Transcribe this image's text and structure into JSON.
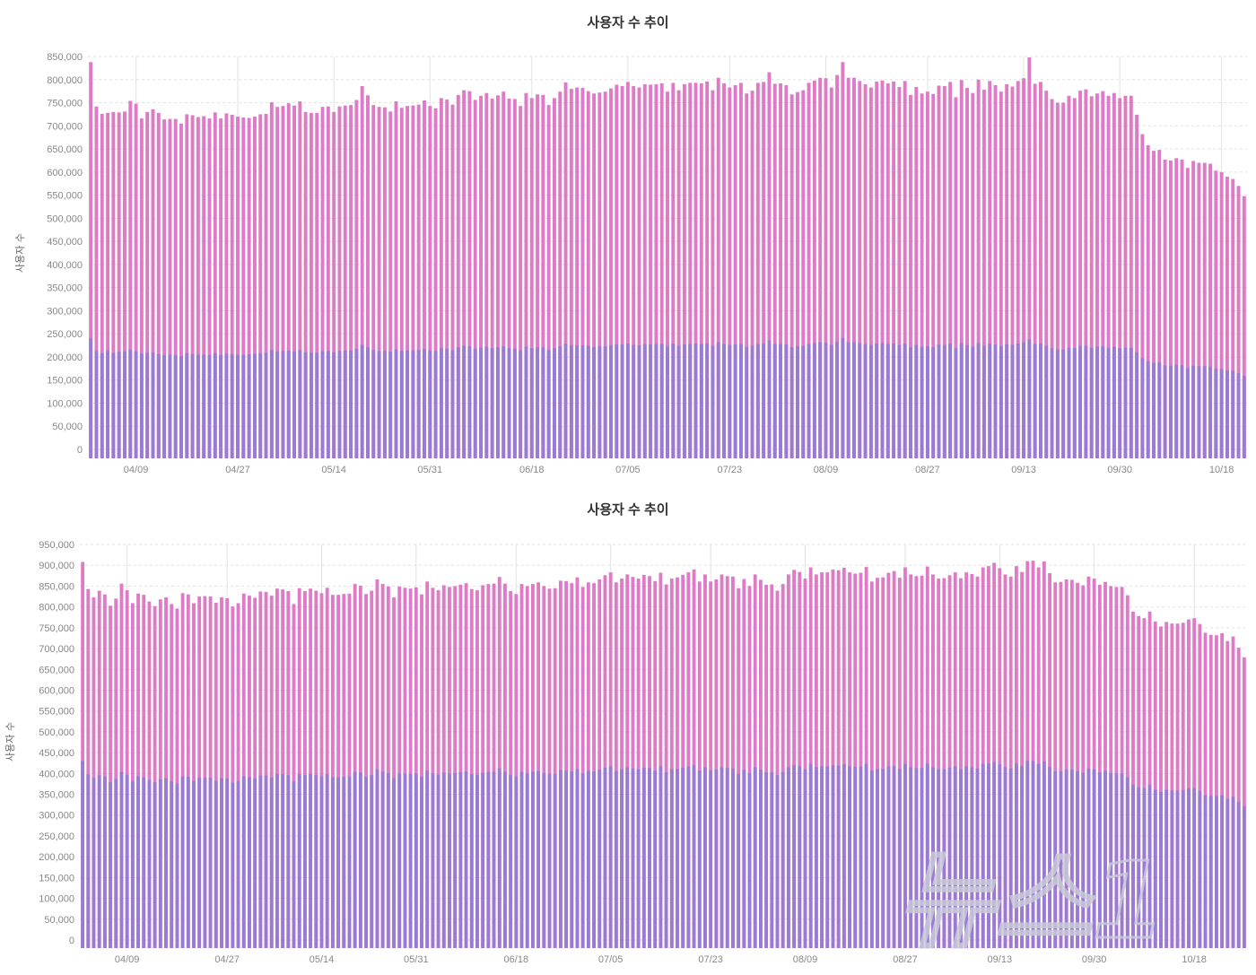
{
  "colors": {
    "total": "#de7ac6",
    "sub": "#9a7ad4",
    "grid": "#e2e2e2",
    "axis_text": "#888888",
    "title": "#333333",
    "watermark": "#bfbfd0"
  },
  "watermark": {
    "text": "뉴스1"
  },
  "chart_data": [
    {
      "type": "bar",
      "title": "사용자 수 추이",
      "ylabel": "사용자 수",
      "ylim": [
        0,
        850000
      ],
      "yticks": [
        0,
        50000,
        100000,
        150000,
        200000,
        250000,
        300000,
        350000,
        400000,
        450000,
        500000,
        550000,
        600000,
        650000,
        700000,
        750000,
        800000,
        850000
      ],
      "ytick_labels": [
        "0",
        "50,000",
        "100,000",
        "150,000",
        "200,000",
        "250,000",
        "300,000",
        "350,000",
        "400,000",
        "450,000",
        "500,000",
        "550,000",
        "600,000",
        "650,000",
        "700,000",
        "750,000",
        "800,000",
        "850,000"
      ],
      "xtick_labels": [
        "04/09",
        "04/27",
        "05/14",
        "05/31",
        "06/18",
        "07/05",
        "07/23",
        "08/09",
        "08/27",
        "09/13",
        "09/30",
        "10/18"
      ],
      "xtick_index": [
        8,
        26,
        43,
        60,
        78,
        95,
        113,
        130,
        148,
        165,
        182,
        200
      ],
      "grid": "horizontal dashed + vertical at ticks",
      "series": [
        {
          "values": [
            838000,
            742000,
            726000,
            728000,
            730000,
            729000,
            731000,
            754000,
            748000,
            716000,
            730000,
            736000,
            728000,
            714000,
            715000,
            715000,
            705000,
            725000,
            723000,
            719000,
            721000,
            716000,
            729000,
            716000,
            727000,
            724000,
            720000,
            718000,
            717000,
            720000,
            725000,
            726000,
            751000,
            741000,
            743000,
            749000,
            744000,
            753000,
            730000,
            728000,
            728000,
            741000,
            742000,
            730000,
            742000,
            744000,
            745000,
            756000,
            786000,
            766000,
            745000,
            741000,
            740000,
            731000,
            753000,
            739000,
            743000,
            744000,
            746000,
            755000,
            743000,
            738000,
            760000,
            757000,
            746000,
            767000,
            777000,
            775000,
            756000,
            765000,
            771000,
            759000,
            766000,
            774000,
            759000,
            758000,
            743000,
            771000,
            760000,
            768000,
            767000,
            745000,
            760000,
            774000,
            794000,
            780000,
            783000,
            782000,
            775000,
            770000,
            772000,
            774000,
            781000,
            789000,
            786000,
            795000,
            786000,
            783000,
            790000,
            789000,
            790000,
            792000,
            774000,
            793000,
            777000,
            790000,
            793000,
            793000,
            792000,
            796000,
            777000,
            804000,
            792000,
            783000,
            788000,
            793000,
            770000,
            776000,
            793000,
            795000,
            816000,
            791000,
            792000,
            788000,
            768000,
            773000,
            777000,
            793000,
            798000,
            804000,
            803000,
            783000,
            810000,
            838000,
            804000,
            804000,
            797000,
            790000,
            783000,
            796000,
            798000,
            792000,
            796000,
            784000,
            797000,
            767000,
            784000,
            770000,
            774000,
            769000,
            787000,
            786000,
            795000,
            762000,
            799000,
            782000,
            771000,
            800000,
            778000,
            797000,
            788000,
            774000,
            790000,
            785000,
            797000,
            803000,
            848000,
            791000,
            795000,
            776000,
            758000,
            750000,
            750000,
            765000,
            760000,
            776000,
            779000,
            764000,
            770000,
            775000,
            765000,
            771000,
            760000,
            765000,
            765000,
            724000,
            682000,
            658000,
            646000,
            648000,
            627000,
            625000,
            630000,
            627000,
            609000,
            624000,
            620000,
            620000,
            618000,
            603000,
            600000,
            590000,
            585000,
            570000,
            548000
          ]
        },
        {
          "values": [
            240000,
            213000,
            208000,
            214000,
            209000,
            211000,
            212000,
            216000,
            212000,
            207000,
            209000,
            210000,
            206000,
            204000,
            205000,
            204000,
            202000,
            208000,
            206000,
            205000,
            205000,
            204000,
            208000,
            204000,
            207000,
            206000,
            205000,
            205000,
            206000,
            207000,
            208000,
            209000,
            215000,
            212000,
            213000,
            214000,
            212000,
            215000,
            210000,
            209000,
            209000,
            213000,
            213000,
            210000,
            213000,
            214000,
            214000,
            218000,
            226000,
            221000,
            215000,
            213000,
            213000,
            211000,
            216000,
            213000,
            214000,
            214000,
            215000,
            217000,
            214000,
            213000,
            219000,
            218000,
            215000,
            221000,
            224000,
            223000,
            218000,
            220000,
            222000,
            219000,
            221000,
            223000,
            219000,
            218000,
            214000,
            222000,
            219000,
            221000,
            221000,
            215000,
            219000,
            223000,
            229000,
            225000,
            225000,
            225000,
            224000,
            222000,
            223000,
            223000,
            225000,
            227000,
            227000,
            229000,
            226000,
            225000,
            228000,
            227000,
            228000,
            228000,
            223000,
            229000,
            224000,
            227000,
            228000,
            229000,
            228000,
            229000,
            224000,
            232000,
            228000,
            226000,
            227000,
            228000,
            222000,
            224000,
            228000,
            229000,
            235000,
            228000,
            228000,
            227000,
            221000,
            223000,
            224000,
            228000,
            230000,
            232000,
            231000,
            226000,
            233000,
            241000,
            232000,
            232000,
            230000,
            228000,
            226000,
            229000,
            230000,
            228000,
            229000,
            226000,
            229000,
            221000,
            226000,
            222000,
            223000,
            221000,
            227000,
            226000,
            229000,
            219000,
            230000,
            225000,
            222000,
            230000,
            224000,
            229000,
            227000,
            223000,
            227000,
            226000,
            229000,
            231000,
            238000,
            228000,
            229000,
            224000,
            219000,
            216000,
            216000,
            220000,
            219000,
            224000,
            224000,
            220000,
            222000,
            223000,
            220000,
            222000,
            219000,
            220000,
            220000,
            210000,
            198000,
            191000,
            187000,
            188000,
            182000,
            181000,
            183000,
            182000,
            176000,
            181000,
            180000,
            180000,
            179000,
            175000,
            174000,
            171000,
            170000,
            165000,
            159000
          ]
        }
      ]
    },
    {
      "type": "bar",
      "title": "사용자 수 추이",
      "ylabel": "사용자 수",
      "ylim": [
        0,
        950000
      ],
      "yticks": [
        0,
        50000,
        100000,
        150000,
        200000,
        250000,
        300000,
        350000,
        400000,
        450000,
        500000,
        550000,
        600000,
        650000,
        700000,
        750000,
        800000,
        850000,
        900000,
        950000
      ],
      "ytick_labels": [
        "0",
        "50,000",
        "100,000",
        "150,000",
        "200,000",
        "250,000",
        "300,000",
        "350,000",
        "400,000",
        "450,000",
        "500,000",
        "550,000",
        "600,000",
        "650,000",
        "700,000",
        "750,000",
        "800,000",
        "850,000",
        "900,000",
        "950,000"
      ],
      "xtick_labels": [
        "04/09",
        "04/27",
        "05/14",
        "05/31",
        "06/18",
        "07/05",
        "07/23",
        "08/09",
        "08/27",
        "09/13",
        "09/30",
        "10/18"
      ],
      "xtick_index": [
        8,
        26,
        43,
        60,
        78,
        95,
        113,
        130,
        148,
        165,
        182,
        200
      ],
      "grid": "horizontal dashed + vertical at ticks",
      "series": [
        {
          "values": [
            908000,
            843000,
            823000,
            839000,
            830000,
            803000,
            820000,
            856000,
            840000,
            809000,
            832000,
            829000,
            813000,
            802000,
            818000,
            823000,
            807000,
            796000,
            833000,
            830000,
            809000,
            825000,
            826000,
            825000,
            810000,
            823000,
            821000,
            801000,
            809000,
            832000,
            827000,
            822000,
            837000,
            836000,
            827000,
            844000,
            842000,
            838000,
            807000,
            845000,
            838000,
            844000,
            839000,
            833000,
            846000,
            829000,
            829000,
            831000,
            832000,
            855000,
            851000,
            831000,
            839000,
            866000,
            855000,
            849000,
            823000,
            849000,
            846000,
            844000,
            847000,
            830000,
            861000,
            846000,
            840000,
            852000,
            848000,
            850000,
            853000,
            857000,
            843000,
            840000,
            852000,
            855000,
            856000,
            872000,
            856000,
            838000,
            831000,
            855000,
            850000,
            855000,
            859000,
            850000,
            844000,
            845000,
            863000,
            862000,
            857000,
            871000,
            848000,
            859000,
            857000,
            866000,
            876000,
            883000,
            859000,
            868000,
            878000,
            872000,
            868000,
            877000,
            874000,
            862000,
            882000,
            854000,
            868000,
            871000,
            877000,
            883000,
            890000,
            861000,
            878000,
            861000,
            866000,
            878000,
            874000,
            873000,
            845000,
            867000,
            850000,
            878000,
            865000,
            853000,
            854000,
            839000,
            855000,
            878000,
            889000,
            884000,
            868000,
            895000,
            878000,
            883000,
            883000,
            890000,
            888000,
            894000,
            883000,
            880000,
            882000,
            896000,
            861000,
            870000,
            871000,
            882000,
            886000,
            870000,
            895000,
            878000,
            874000,
            875000,
            897000,
            878000,
            868000,
            869000,
            876000,
            883000,
            869000,
            883000,
            879000,
            873000,
            895000,
            898000,
            906000,
            893000,
            878000,
            873000,
            898000,
            884000,
            910000,
            911000,
            895000,
            909000,
            881000,
            859000,
            860000,
            866000,
            865000,
            858000,
            852000,
            873000,
            868000,
            853000,
            860000,
            850000,
            848000,
            848000,
            828000,
            789000,
            778000,
            773000,
            789000,
            765000,
            753000,
            764000,
            760000,
            760000,
            762000,
            770000,
            773000,
            759000,
            738000,
            733000,
            732000,
            737000,
            718000,
            729000,
            702000,
            679000
          ]
        },
        {
          "values": [
            430000,
            398000,
            389000,
            396000,
            392000,
            379000,
            387000,
            404000,
            397000,
            382000,
            393000,
            391000,
            384000,
            379000,
            386000,
            389000,
            381000,
            376000,
            393000,
            392000,
            382000,
            390000,
            390000,
            390000,
            382000,
            389000,
            388000,
            378000,
            382000,
            393000,
            391000,
            388000,
            395000,
            395000,
            391000,
            399000,
            398000,
            396000,
            381000,
            399000,
            396000,
            399000,
            396000,
            393000,
            399000,
            391000,
            391000,
            392000,
            393000,
            404000,
            402000,
            392000,
            396000,
            409000,
            404000,
            401000,
            389000,
            401000,
            400000,
            399000,
            400000,
            392000,
            407000,
            400000,
            397000,
            402000,
            400000,
            401000,
            403000,
            405000,
            398000,
            397000,
            402000,
            404000,
            404000,
            412000,
            404000,
            396000,
            393000,
            404000,
            401000,
            404000,
            406000,
            401000,
            399000,
            399000,
            408000,
            407000,
            405000,
            411000,
            400000,
            406000,
            405000,
            409000,
            414000,
            417000,
            406000,
            410000,
            415000,
            412000,
            410000,
            414000,
            413000,
            407000,
            417000,
            403000,
            410000,
            411000,
            414000,
            417000,
            420000,
            407000,
            415000,
            407000,
            409000,
            415000,
            413000,
            412000,
            399000,
            409000,
            401000,
            415000,
            409000,
            403000,
            403000,
            396000,
            404000,
            415000,
            420000,
            418000,
            410000,
            423000,
            415000,
            417000,
            417000,
            420000,
            419000,
            422000,
            417000,
            416000,
            417000,
            423000,
            407000,
            411000,
            411000,
            417000,
            418000,
            411000,
            423000,
            415000,
            413000,
            413000,
            424000,
            415000,
            410000,
            410000,
            414000,
            417000,
            410000,
            417000,
            415000,
            412000,
            423000,
            424000,
            428000,
            422000,
            415000,
            412000,
            424000,
            418000,
            430000,
            430000,
            423000,
            429000,
            416000,
            406000,
            406000,
            409000,
            409000,
            405000,
            402000,
            412000,
            410000,
            403000,
            406000,
            401000,
            400000,
            400000,
            391000,
            373000,
            367000,
            365000,
            373000,
            361000,
            356000,
            361000,
            359000,
            359000,
            360000,
            364000,
            365000,
            358000,
            348000,
            346000,
            346000,
            348000,
            339000,
            344000,
            332000,
            321000
          ]
        }
      ]
    }
  ]
}
